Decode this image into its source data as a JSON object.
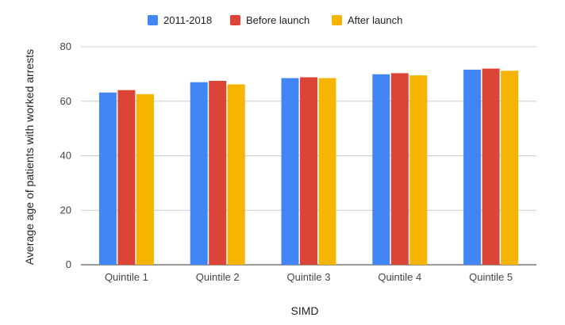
{
  "chart_data": {
    "type": "bar",
    "xlabel": "SIMD",
    "ylabel": "Average age of patients with worked arrests",
    "categories": [
      "Quintile 1",
      "Quintile 2",
      "Quintile 3",
      "Quintile 4",
      "Quintile 5"
    ],
    "series": [
      {
        "name": "2011-2018",
        "color": "#4285f4",
        "values": [
          63.2,
          67.0,
          68.5,
          69.9,
          71.6
        ]
      },
      {
        "name": "Before launch",
        "color": "#db4437",
        "values": [
          64.1,
          67.5,
          68.8,
          70.3,
          72.0
        ]
      },
      {
        "name": "After launch",
        "color": "#f4b400",
        "values": [
          62.6,
          66.2,
          68.5,
          69.5,
          71.2
        ]
      }
    ],
    "ylim": [
      0,
      80
    ],
    "yticks": [
      0,
      20,
      40,
      60,
      80
    ],
    "grid": true,
    "legend_position": "top"
  }
}
